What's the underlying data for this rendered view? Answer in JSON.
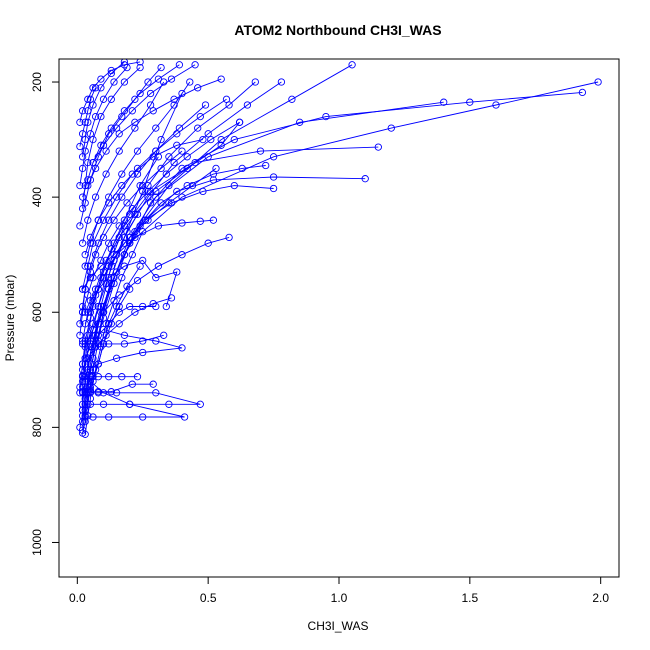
{
  "chart_data": {
    "type": "scatter",
    "title": "ATOM2 Northbound CH3I_WAS",
    "xlabel": "CH3I_WAS",
    "ylabel": "Pressure (mbar)",
    "xlim": [
      -0.07,
      2.07
    ],
    "ylim": [
      1060,
      160
    ],
    "y_reversed": true,
    "x_ticks": [
      0.0,
      0.5,
      1.0,
      1.5,
      2.0
    ],
    "x_tick_labels": [
      "0.0",
      "0.5",
      "1.0",
      "1.5",
      "2.0"
    ],
    "y_ticks": [
      200,
      400,
      600,
      800,
      1000
    ],
    "y_tick_labels": [
      "200",
      "400",
      "600",
      "800",
      "1000"
    ],
    "grid": false,
    "legend": "none",
    "colors": {
      "series": "#0000ff",
      "axes": "#000000"
    },
    "series": [
      {
        "x": [
          0.02,
          0.03,
          0.04,
          0.05,
          0.06,
          0.08,
          0.1,
          0.13,
          0.18,
          0.25,
          0.32,
          0.4
        ],
        "y": [
          810,
          790,
          760,
          730,
          700,
          650,
          600,
          540,
          470,
          390,
          300,
          220
        ]
      },
      {
        "x": [
          0.01,
          0.02,
          0.03,
          0.05,
          0.07,
          0.1,
          0.15,
          0.22,
          0.35,
          0.55,
          0.82,
          1.05
        ],
        "y": [
          800,
          780,
          740,
          690,
          640,
          590,
          530,
          460,
          380,
          300,
          230,
          170
        ]
      },
      {
        "x": [
          0.02,
          0.03,
          0.04,
          0.06,
          0.08,
          0.12,
          0.2,
          0.4,
          0.75,
          1.2,
          1.6,
          1.99
        ],
        "y": [
          790,
          760,
          720,
          680,
          620,
          560,
          480,
          400,
          330,
          280,
          240,
          200
        ]
      },
      {
        "x": [
          0.03,
          0.04,
          0.05,
          0.07,
          0.1,
          0.14,
          0.2,
          0.3,
          0.5,
          0.85,
          1.4
        ],
        "y": [
          780,
          740,
          700,
          660,
          600,
          540,
          470,
          400,
          330,
          270,
          235
        ]
      },
      {
        "x": [
          0.02,
          0.02,
          0.03,
          0.05,
          0.08,
          0.12,
          0.18,
          0.28,
          0.45,
          0.7,
          1.15
        ],
        "y": [
          770,
          730,
          690,
          650,
          590,
          520,
          450,
          390,
          340,
          320,
          313
        ]
      },
      {
        "x": [
          0.02,
          0.03,
          0.05,
          0.08,
          0.12,
          0.18,
          0.26,
          0.38,
          0.52,
          0.75,
          1.1
        ],
        "y": [
          760,
          720,
          670,
          620,
          560,
          500,
          440,
          390,
          370,
          365,
          368
        ]
      },
      {
        "x": [
          0.03,
          0.05,
          0.07,
          0.1,
          0.14,
          0.2,
          0.28,
          0.4,
          0.6,
          0.95,
          1.5,
          1.93
        ],
        "y": [
          750,
          700,
          660,
          610,
          550,
          480,
          410,
          350,
          300,
          260,
          235,
          218
        ]
      },
      {
        "x": [
          0.02,
          0.04,
          0.06,
          0.09,
          0.13,
          0.19,
          0.27,
          0.37,
          0.5,
          0.65,
          0.78
        ],
        "y": [
          740,
          700,
          650,
          590,
          520,
          460,
          400,
          340,
          290,
          240,
          200
        ]
      },
      {
        "x": [
          0.05,
          0.1,
          0.2,
          0.35,
          0.47,
          0.3,
          0.15,
          0.08,
          0.05
        ],
        "y": [
          760,
          760,
          760,
          760,
          760,
          740,
          740,
          740,
          740
        ]
      },
      {
        "x": [
          0.03,
          0.06,
          0.12,
          0.25,
          0.41,
          0.2,
          0.1,
          0.05
        ],
        "y": [
          782,
          782,
          782,
          782,
          782,
          760,
          740,
          720
        ]
      },
      {
        "x": [
          0.02,
          0.04,
          0.08,
          0.15,
          0.25,
          0.4,
          0.3,
          0.18,
          0.1
        ],
        "y": [
          720,
          700,
          690,
          680,
          670,
          662,
          650,
          640,
          630
        ]
      },
      {
        "x": [
          0.03,
          0.05,
          0.08,
          0.12,
          0.18,
          0.25,
          0.3,
          0.38,
          0.34
        ],
        "y": [
          600,
          580,
          560,
          540,
          520,
          510,
          540,
          530,
          590
        ]
      },
      {
        "x": [
          0.02,
          0.04,
          0.07,
          0.11,
          0.16,
          0.22,
          0.3,
          0.42,
          0.55,
          0.62
        ],
        "y": [
          650,
          600,
          560,
          510,
          470,
          430,
          390,
          350,
          310,
          270
        ]
      },
      {
        "x": [
          0.01,
          0.02,
          0.04,
          0.06,
          0.09,
          0.13,
          0.18,
          0.24,
          0.31
        ],
        "y": [
          730,
          690,
          640,
          590,
          540,
          490,
          440,
          380,
          330
        ]
      },
      {
        "x": [
          0.02,
          0.03,
          0.05,
          0.07,
          0.1,
          0.14,
          0.2,
          0.27,
          0.35,
          0.46,
          0.58,
          0.68
        ],
        "y": [
          690,
          650,
          610,
          570,
          530,
          480,
          430,
          380,
          330,
          280,
          240,
          200
        ]
      },
      {
        "x": [
          0.04,
          0.06,
          0.09,
          0.13,
          0.18,
          0.24,
          0.32,
          0.42,
          0.52,
          0.63,
          0.72
        ],
        "y": [
          700,
          650,
          600,
          550,
          500,
          450,
          410,
          380,
          360,
          350,
          345
        ]
      },
      {
        "x": [
          0.01,
          0.02,
          0.03,
          0.05,
          0.08,
          0.12,
          0.17,
          0.23,
          0.3,
          0.39,
          0.49
        ],
        "y": [
          640,
          600,
          560,
          520,
          480,
          440,
          400,
          360,
          320,
          280,
          240
        ]
      },
      {
        "x": [
          0.02,
          0.04,
          0.06,
          0.1,
          0.15,
          0.21,
          0.29,
          0.38,
          0.48
        ],
        "y": [
          560,
          520,
          480,
          440,
          400,
          360,
          330,
          310,
          300
        ]
      },
      {
        "x": [
          0.03,
          0.05,
          0.08,
          0.12,
          0.17,
          0.23,
          0.3,
          0.37,
          0.43
        ],
        "y": [
          520,
          480,
          440,
          400,
          360,
          320,
          280,
          240,
          200
        ]
      },
      {
        "x": [
          0.02,
          0.04,
          0.07,
          0.11,
          0.16,
          0.22,
          0.28,
          0.33
        ],
        "y": [
          480,
          440,
          400,
          360,
          320,
          280,
          240,
          200
        ]
      },
      {
        "x": [
          0.01,
          0.03,
          0.05,
          0.08,
          0.12,
          0.17,
          0.22,
          0.27,
          0.32
        ],
        "y": [
          450,
          410,
          370,
          330,
          290,
          260,
          230,
          200,
          175
        ]
      },
      {
        "x": [
          0.02,
          0.03,
          0.04,
          0.06,
          0.09,
          0.13,
          0.18,
          0.24
        ],
        "y": [
          420,
          380,
          340,
          300,
          260,
          230,
          200,
          175
        ]
      },
      {
        "x": [
          0.05,
          0.08,
          0.12,
          0.18,
          0.26,
          0.36,
          0.48,
          0.6,
          0.75
        ],
        "y": [
          600,
          560,
          520,
          480,
          440,
          410,
          390,
          380,
          385
        ]
      },
      {
        "x": [
          0.03,
          0.06,
          0.1,
          0.15,
          0.22,
          0.31,
          0.4,
          0.47,
          0.52
        ],
        "y": [
          620,
          580,
          540,
          500,
          470,
          450,
          445,
          442,
          440
        ]
      },
      {
        "x": [
          0.02,
          0.03,
          0.05,
          0.07,
          0.09,
          0.11,
          0.14,
          0.17,
          0.21,
          0.25
        ],
        "y": [
          805,
          770,
          735,
          700,
          660,
          620,
          580,
          540,
          500,
          460
        ]
      },
      {
        "x": [
          0.03,
          0.04,
          0.05,
          0.06,
          0.08,
          0.1,
          0.13,
          0.16,
          0.2
        ],
        "y": [
          812,
          780,
          750,
          720,
          690,
          655,
          620,
          590,
          560
        ]
      },
      {
        "x": [
          0.02,
          0.04,
          0.06,
          0.08,
          0.1,
          0.12,
          0.15,
          0.19,
          0.24
        ],
        "y": [
          770,
          740,
          712,
          690,
          655,
          620,
          590,
          555,
          520
        ]
      },
      {
        "x": [
          0.01,
          0.02,
          0.03,
          0.04,
          0.06,
          0.08,
          0.11,
          0.14,
          0.18,
          0.23
        ],
        "y": [
          740,
          710,
          680,
          650,
          620,
          590,
          550,
          510,
          470,
          430
        ]
      },
      {
        "x": [
          0.02,
          0.05,
          0.09,
          0.14,
          0.2,
          0.27,
          0.35,
          0.44,
          0.53
        ],
        "y": [
          560,
          540,
          520,
          500,
          470,
          440,
          410,
          380,
          350
        ]
      },
      {
        "x": [
          0.03,
          0.05,
          0.08,
          0.12,
          0.17,
          0.23,
          0.3,
          0.38,
          0.47,
          0.57
        ],
        "y": [
          500,
          470,
          440,
          410,
          380,
          350,
          320,
          290,
          260,
          230
        ]
      },
      {
        "x": [
          0.02,
          0.04,
          0.06,
          0.09,
          0.13,
          0.18,
          0.24,
          0.31,
          0.39
        ],
        "y": [
          400,
          370,
          340,
          310,
          280,
          250,
          220,
          195,
          170
        ]
      },
      {
        "x": [
          0.04,
          0.07,
          0.11,
          0.16,
          0.22,
          0.29,
          0.37,
          0.46,
          0.55
        ],
        "y": [
          380,
          350,
          320,
          290,
          270,
          250,
          230,
          210,
          195
        ]
      },
      {
        "x": [
          0.01,
          0.02,
          0.03,
          0.05,
          0.07,
          0.1,
          0.14,
          0.19
        ],
        "y": [
          380,
          350,
          320,
          290,
          260,
          230,
          200,
          175
        ]
      },
      {
        "x": [
          0.02,
          0.03,
          0.04,
          0.06,
          0.09,
          0.13,
          0.18
        ],
        "y": [
          330,
          300,
          270,
          240,
          210,
          185,
          165
        ]
      },
      {
        "x": [
          0.06,
          0.1,
          0.15,
          0.21,
          0.28,
          0.36,
          0.45
        ],
        "y": [
          340,
          310,
          280,
          250,
          220,
          195,
          170
        ]
      },
      {
        "x": [
          0.03,
          0.06,
          0.1,
          0.16,
          0.23,
          0.31,
          0.4,
          0.5,
          0.58
        ],
        "y": [
          660,
          630,
          600,
          570,
          545,
          520,
          500,
          480,
          470
        ]
      },
      {
        "x": [
          0.02,
          0.04,
          0.07,
          0.11,
          0.16,
          0.22,
          0.29,
          0.36
        ],
        "y": [
          700,
          680,
          660,
          640,
          620,
          600,
          585,
          575
        ]
      },
      {
        "x": [
          0.03,
          0.05,
          0.08,
          0.12,
          0.16,
          0.2,
          0.25,
          0.3
        ],
        "y": [
          680,
          660,
          640,
          620,
          600,
          590,
          590,
          590
        ]
      },
      {
        "x": [
          0.02,
          0.03,
          0.05,
          0.08,
          0.12,
          0.18,
          0.25,
          0.33
        ],
        "y": [
          655,
          655,
          655,
          655,
          655,
          655,
          650,
          640
        ]
      },
      {
        "x": [
          0.02,
          0.03,
          0.05,
          0.08,
          0.12,
          0.17,
          0.23
        ],
        "y": [
          712,
          712,
          712,
          712,
          712,
          712,
          712
        ]
      },
      {
        "x": [
          0.02,
          0.03,
          0.05,
          0.08,
          0.13,
          0.21,
          0.29
        ],
        "y": [
          738,
          738,
          738,
          738,
          738,
          725,
          725
        ]
      },
      {
        "x": [
          0.01,
          0.02,
          0.03,
          0.05,
          0.07,
          0.1,
          0.14,
          0.19,
          0.25,
          0.32,
          0.4
        ],
        "y": [
          620,
          590,
          560,
          530,
          500,
          470,
          440,
          410,
          380,
          350,
          320
        ]
      },
      {
        "x": [
          0.02,
          0.04,
          0.06,
          0.09,
          0.12,
          0.16,
          0.21,
          0.27,
          0.34,
          0.42,
          0.51,
          0.62
        ],
        "y": [
          600,
          570,
          540,
          510,
          480,
          450,
          420,
          390,
          360,
          330,
          300,
          270
        ]
      },
      {
        "x": [
          0.01,
          0.02,
          0.04,
          0.06,
          0.09,
          0.13,
          0.18,
          0.24
        ],
        "y": [
          270,
          250,
          230,
          210,
          195,
          180,
          170,
          165
        ]
      },
      {
        "x": [
          0.01,
          0.02,
          0.03,
          0.04,
          0.05,
          0.07
        ],
        "y": [
          312,
          290,
          270,
          250,
          230,
          210
        ]
      }
    ]
  }
}
